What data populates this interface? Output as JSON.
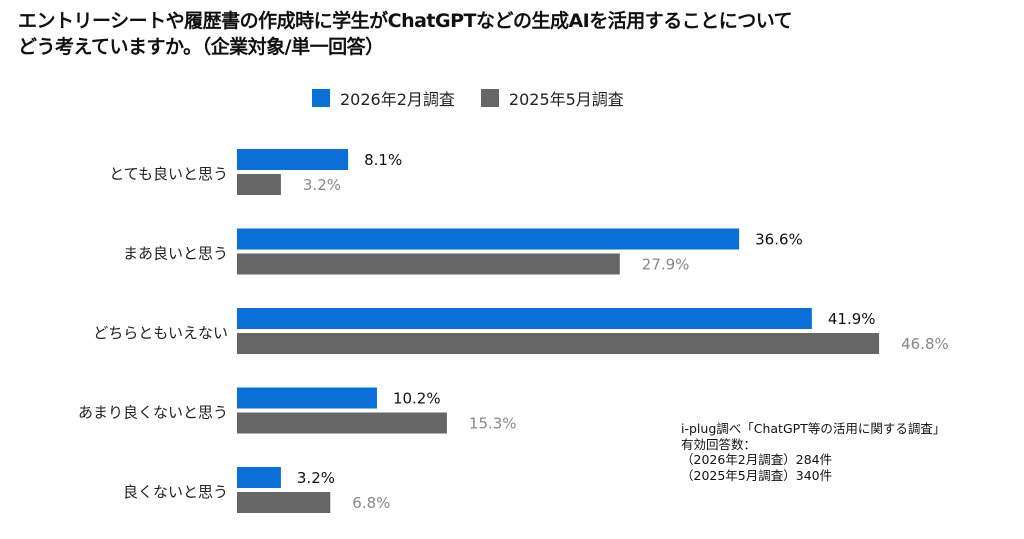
{
  "chart_data": {
    "type": "bar",
    "orientation": "horizontal",
    "title": "エントリーシートや履歴書の作成時に学生がChatGPTなどの生成AIを活用することについてどう考えていますか。（企業対象/単一回答）",
    "title_lines": [
      "エントリーシートや履歴書の作成時に学生がChatGPTなどの生成AIを活用することについて",
      "どう考えていますか。（企業対象/単一回答）"
    ],
    "categories": [
      "とても良いと思う",
      "まあ良いと思う",
      "どちらともいえない",
      "あまり良くないと思う",
      "良くないと思う"
    ],
    "series": [
      {
        "name": "2026年2月調査",
        "color": "#0b6fd8",
        "label_color": "#111111",
        "values": [
          8.1,
          36.6,
          41.9,
          10.2,
          3.2
        ]
      },
      {
        "name": "2025年5月調査",
        "color": "#666666",
        "label_color": "#888888",
        "values": [
          3.2,
          27.9,
          46.8,
          15.3,
          6.8
        ]
      }
    ],
    "value_suffix": "%",
    "xlim": [
      0,
      50
    ],
    "grid": false,
    "legend": "top"
  },
  "note": {
    "lines": [
      "i-plug調べ「ChatGPT等の活用に関する調査」",
      "有効回答数：",
      "（2026年2月調査）284件",
      "（2025年5月調査）340件"
    ]
  }
}
